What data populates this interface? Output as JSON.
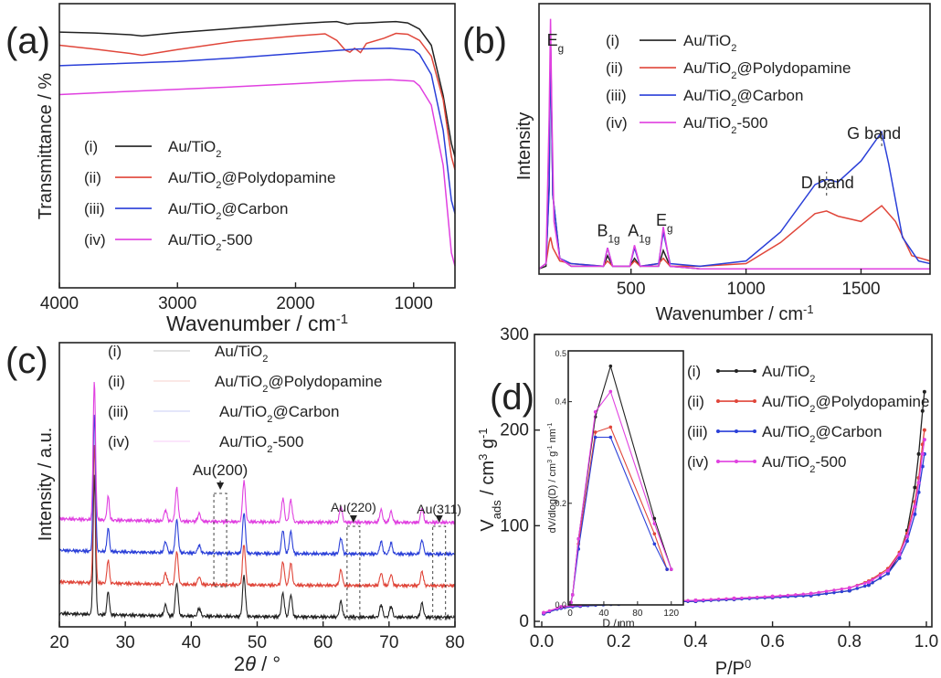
{
  "colors": {
    "black": "#222222",
    "red": "#e0463a",
    "blue": "#2a3fd8",
    "magenta": "#e040e0"
  },
  "chart_data": [
    {
      "panel": "(a)",
      "type": "line",
      "xlabel": "Wavenumber / cm",
      "xlabel_sup": "-1",
      "ylabel": "Transmittance / %",
      "xlim": [
        4000,
        650
      ],
      "xticks": [
        "4000",
        "3000",
        "2000",
        "1000"
      ],
      "xtick_values": [
        4000,
        3000,
        2000,
        1000
      ],
      "legend": [
        {
          "tag": "(i)",
          "pre": "Au/TiO",
          "sub": "2",
          "post": ""
        },
        {
          "tag": "(ii)",
          "pre": "Au/TiO",
          "sub": "2",
          "post": "@Polydopamine"
        },
        {
          "tag": "(iii)",
          "pre": "Au/TiO",
          "sub": "2",
          "post": "@Carbon"
        },
        {
          "tag": "(iv)",
          "pre": "Au/TiO",
          "sub": "2",
          "post": "-500"
        }
      ],
      "series": [
        {
          "x": [
            4000,
            3700,
            3400,
            3300,
            3000,
            2500,
            2000,
            1750,
            1650,
            1560,
            1500,
            1400,
            1250,
            1150,
            1050,
            950,
            850,
            750,
            680,
            650
          ],
          "y": [
            88.5,
            88.3,
            87.9,
            87.6,
            88.4,
            89.4,
            90.4,
            90.8,
            90.9,
            90.3,
            90.5,
            90.6,
            90.8,
            90.9,
            90.6,
            89.2,
            85.5,
            74,
            63,
            60
          ]
        },
        {
          "x": [
            4000,
            3700,
            3400,
            3300,
            3000,
            2500,
            2000,
            1750,
            1650,
            1580,
            1540,
            1500,
            1450,
            1400,
            1250,
            1150,
            1050,
            950,
            850,
            750,
            680,
            650
          ],
          "y": [
            85.5,
            84.6,
            83.6,
            83.2,
            84.5,
            86.4,
            87.6,
            88.1,
            86.6,
            84.4,
            83.9,
            84.8,
            83.8,
            85.9,
            87.1,
            88.2,
            88,
            86.6,
            83,
            73,
            60,
            57
          ]
        },
        {
          "x": [
            4000,
            3600,
            3000,
            2500,
            2000,
            1500,
            1200,
            1000,
            950,
            850,
            750,
            680,
            650
          ],
          "y": [
            80.8,
            81.2,
            81.8,
            82.6,
            83.6,
            84.6,
            84.8,
            84.4,
            83.4,
            78.8,
            66,
            50,
            47
          ]
        },
        {
          "x": [
            4000,
            3600,
            3000,
            2500,
            2000,
            1500,
            1200,
            1000,
            950,
            850,
            750,
            680,
            650
          ],
          "y": [
            74.2,
            74.7,
            75.4,
            76,
            76.7,
            77.4,
            77.6,
            77.3,
            76.2,
            71.8,
            58,
            38,
            35
          ]
        }
      ]
    },
    {
      "panel": "(b)",
      "type": "line",
      "xlabel": "Wavenumber / cm",
      "xlabel_sup": "-1",
      "ylabel": "Intensity",
      "xlim": [
        100,
        1800
      ],
      "xticks": [
        "500",
        "1000",
        "1500"
      ],
      "xtick_values": [
        500,
        1000,
        1500
      ],
      "annotations": [
        {
          "pre": "E",
          "sub": "g",
          "x": 150,
          "y": 96
        },
        {
          "pre": "B",
          "sub": "1g",
          "x": 400,
          "y": 13
        },
        {
          "pre": "A",
          "sub": "1g",
          "x": 510,
          "y": 13
        },
        {
          "pre": "E",
          "sub": "g",
          "x": 640,
          "y": 17
        },
        {
          "pre": "D band",
          "sub": "",
          "x": 1350,
          "y": 41
        },
        {
          "pre": "G band",
          "sub": "",
          "x": 1590,
          "y": 55
        }
      ],
      "legend": [
        {
          "tag": "(i)",
          "pre": "Au/TiO",
          "sub": "2",
          "post": ""
        },
        {
          "tag": "(ii)",
          "pre": "Au/TiO",
          "sub": "2",
          "post": "@Polydopamine"
        },
        {
          "tag": "(iii)",
          "pre": "Au/TiO",
          "sub": "2",
          "post": "@Carbon"
        },
        {
          "tag": "(iv)",
          "pre": "Au/TiO",
          "sub": "2",
          "post": "-500"
        }
      ],
      "series": [
        {
          "x": [
            100,
            130,
            144,
            150,
            160,
            190,
            240,
            380,
            398,
            420,
            495,
            515,
            540,
            620,
            640,
            670,
            800,
            1800
          ],
          "y": [
            2,
            3,
            34,
            90,
            30,
            6,
            3,
            3,
            7,
            3,
            3,
            6,
            3,
            3,
            9,
            3,
            2,
            2
          ]
        },
        {
          "x": [
            100,
            130,
            144,
            150,
            160,
            190,
            240,
            380,
            398,
            420,
            495,
            515,
            540,
            620,
            640,
            670,
            800,
            1000,
            1150,
            1300,
            1350,
            1400,
            1500,
            1590,
            1650,
            1720,
            1800
          ],
          "y": [
            2,
            4,
            12,
            14,
            10,
            5,
            4,
            3,
            5,
            3,
            3,
            5,
            3,
            4,
            6,
            3,
            3,
            4,
            12,
            23,
            24,
            22,
            20,
            26,
            20,
            7,
            5
          ]
        },
        {
          "x": [
            100,
            130,
            144,
            150,
            160,
            190,
            240,
            380,
            398,
            420,
            495,
            515,
            540,
            620,
            640,
            670,
            800,
            1000,
            1150,
            1300,
            1350,
            1400,
            1500,
            1590,
            1620,
            1680,
            1750,
            1800
          ],
          "y": [
            2,
            4,
            32,
            90,
            30,
            6,
            4,
            3,
            10,
            3,
            3,
            10,
            3,
            4,
            16,
            4,
            3,
            5,
            16,
            34,
            36,
            35,
            43,
            54,
            42,
            14,
            5,
            4
          ]
        },
        {
          "x": [
            100,
            130,
            144,
            150,
            156,
            165,
            190,
            240,
            380,
            398,
            420,
            495,
            515,
            540,
            620,
            640,
            670,
            800,
            1800
          ],
          "y": [
            2,
            4,
            60,
            97,
            60,
            20,
            6,
            3,
            3,
            10,
            3,
            3,
            11,
            3,
            3,
            18,
            3,
            2,
            2
          ]
        }
      ]
    },
    {
      "panel": "(c)",
      "type": "line",
      "xlabel": "2",
      "xlabel_italic": "θ",
      "xlabel_post": " / °",
      "ylabel": "Intensity / a.u.",
      "xlim": [
        20,
        80
      ],
      "xticks": [
        "20",
        "30",
        "40",
        "50",
        "60",
        "70",
        "80"
      ],
      "xtick_values": [
        20,
        30,
        40,
        50,
        60,
        70,
        80
      ],
      "annotations": [
        {
          "pre": "Au(200)",
          "x": 44.4
        },
        {
          "pre": "Au(220)",
          "x": 64.6
        },
        {
          "pre": "Au(311)",
          "x": 77.6
        }
      ],
      "legend": [
        {
          "tag": "(i)",
          "pre": "Au/TiO",
          "sub": "2",
          "post": ""
        },
        {
          "tag": "(ii)",
          "pre": "Au/TiO",
          "sub": "2",
          "post": "@Polydopamine"
        },
        {
          "tag": "(iii)",
          "pre": "Au/TiO",
          "sub": "2",
          "post": "@Carbon"
        },
        {
          "tag": "(iv)",
          "pre": "Au/TiO",
          "sub": "2",
          "post": "-500"
        }
      ],
      "baselines": [
        6,
        26,
        46,
        66
      ],
      "peaks": [
        {
          "x": 25.3,
          "h": 88,
          "w": 0.25
        },
        {
          "x": 27.4,
          "h": 15,
          "w": 0.25
        },
        {
          "x": 36.1,
          "h": 7,
          "w": 0.3
        },
        {
          "x": 37.8,
          "h": 21,
          "w": 0.3
        },
        {
          "x": 41.2,
          "h": 5,
          "w": 0.3
        },
        {
          "x": 48.0,
          "h": 26,
          "w": 0.3
        },
        {
          "x": 53.9,
          "h": 15,
          "w": 0.3
        },
        {
          "x": 55.1,
          "h": 14,
          "w": 0.3
        },
        {
          "x": 62.7,
          "h": 10,
          "w": 0.3
        },
        {
          "x": 68.8,
          "h": 8,
          "w": 0.3
        },
        {
          "x": 70.3,
          "h": 7,
          "w": 0.3
        },
        {
          "x": 75.0,
          "h": 9,
          "w": 0.3
        }
      ]
    },
    {
      "panel": "(d)",
      "type": "line",
      "xlabel": "P/P",
      "xlabel_sup": "0",
      "ylabel": "V",
      "ylabel_sub": "ads",
      "ylabel_post": " / cm",
      "ylabel_sup": "3",
      "ylabel_post2": " g",
      "ylabel_sup2": "-1",
      "xlim": [
        0,
        1
      ],
      "ylim": [
        0,
        300
      ],
      "xticks": [
        "0.0",
        "0.2",
        "0.4",
        "0.6",
        "0.8",
        "1.0"
      ],
      "xtick_values": [
        0,
        0.2,
        0.4,
        0.6,
        0.8,
        1.0
      ],
      "yticks": [
        "0",
        "100",
        "200",
        "300"
      ],
      "ytick_values": [
        0,
        100,
        200,
        300
      ],
      "legend": [
        {
          "tag": "(i)",
          "pre": "Au/TiO",
          "sub": "2",
          "post": ""
        },
        {
          "tag": "(ii)",
          "pre": "Au/TiO",
          "sub": "2",
          "post": "@Polydopamine"
        },
        {
          "tag": "(iii)",
          "pre": "Au/TiO",
          "sub": "2",
          "post": "@Carbon"
        },
        {
          "tag": "(iv)",
          "pre": "Au/TiO",
          "sub": "2",
          "post": "-500"
        }
      ],
      "series": [
        {
          "x": [
            0.005,
            0.05,
            0.1,
            0.2,
            0.3,
            0.4,
            0.5,
            0.6,
            0.7,
            0.8,
            0.85,
            0.9,
            0.93,
            0.95,
            0.97,
            0.98,
            0.99,
            0.995
          ],
          "y": [
            8,
            14,
            16,
            18,
            20,
            21,
            23,
            25,
            27,
            32,
            38,
            50,
            70,
            95,
            140,
            175,
            220,
            240
          ]
        },
        {
          "x": [
            0.005,
            0.05,
            0.1,
            0.2,
            0.3,
            0.4,
            0.5,
            0.6,
            0.7,
            0.8,
            0.85,
            0.9,
            0.93,
            0.95,
            0.97,
            0.98,
            0.99,
            0.995
          ],
          "y": [
            9,
            15,
            17,
            19,
            21,
            22,
            24,
            26,
            29,
            35,
            42,
            55,
            72,
            92,
            125,
            150,
            185,
            200
          ]
        },
        {
          "x": [
            0.005,
            0.05,
            0.1,
            0.2,
            0.3,
            0.4,
            0.5,
            0.6,
            0.7,
            0.8,
            0.85,
            0.9,
            0.93,
            0.95,
            0.97,
            0.98,
            0.99,
            0.995
          ],
          "y": [
            8,
            14,
            16,
            18,
            20,
            21,
            23,
            25,
            27,
            32,
            38,
            50,
            66,
            84,
            112,
            135,
            162,
            175
          ]
        },
        {
          "x": [
            0.005,
            0.05,
            0.1,
            0.2,
            0.3,
            0.4,
            0.5,
            0.6,
            0.7,
            0.8,
            0.85,
            0.9,
            0.93,
            0.95,
            0.97,
            0.98,
            0.99,
            0.995
          ],
          "y": [
            9,
            15,
            17,
            19,
            21,
            22,
            24,
            26,
            29,
            35,
            41,
            53,
            70,
            89,
            120,
            145,
            175,
            190
          ]
        }
      ],
      "inset": {
        "xlabel": "D / nm",
        "ylabel": "dV/dlog(D) / cm",
        "ylabel_sup": "3",
        "ylabel_mid": " g",
        "ylabel_sup2": "-1",
        "ylabel_end": " nm",
        "ylabel_sup3": "-1",
        "xlim": [
          0,
          130
        ],
        "ylim": [
          0,
          0.5
        ],
        "xticks": [
          "0",
          "40",
          "80",
          "120"
        ],
        "xtick_values": [
          0,
          40,
          80,
          120
        ],
        "yticks": [
          "0.0",
          "0.2",
          "0.4"
        ],
        "ytick_values": [
          0,
          0.2,
          0.4
        ],
        "ytick_top": "0.5",
        "series": [
          {
            "x": [
              0,
              1,
              3,
              10,
              30,
              48,
              100,
              120
            ],
            "y": [
              0.0,
              0.005,
              0.02,
              0.13,
              0.37,
              0.47,
              0.17,
              0.07
            ]
          },
          {
            "x": [
              0,
              1,
              3,
              10,
              30,
              48,
              100,
              115
            ],
            "y": [
              0.0,
              0.005,
              0.02,
              0.12,
              0.34,
              0.35,
              0.14,
              0.07
            ]
          },
          {
            "x": [
              0,
              1,
              3,
              10,
              30,
              48,
              100,
              115
            ],
            "y": [
              0.0,
              0.005,
              0.02,
              0.11,
              0.33,
              0.33,
              0.12,
              0.07
            ]
          },
          {
            "x": [
              0,
              1,
              3,
              10,
              30,
              48,
              100,
              120
            ],
            "y": [
              0.0,
              0.005,
              0.02,
              0.13,
              0.38,
              0.42,
              0.16,
              0.07
            ]
          }
        ]
      }
    }
  ]
}
